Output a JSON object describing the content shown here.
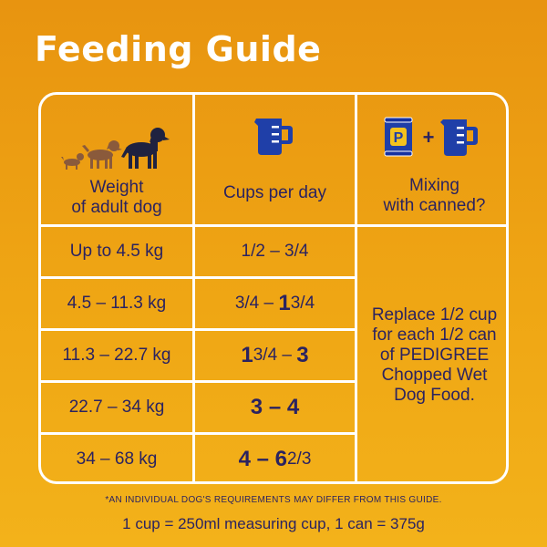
{
  "title": "Feeding Guide",
  "headers": {
    "weight": [
      "Weight",
      "of adult dog"
    ],
    "cups": "Cups per day",
    "mixing": [
      "Mixing",
      "with canned?"
    ]
  },
  "rows": [
    {
      "weight": "Up to 4.5 kg",
      "cups": "1/2 – 3/4"
    },
    {
      "weight": "4.5 – 11.3 kg",
      "cups_a": "3/4 – ",
      "cups_big": "1",
      "cups_b": " 3/4"
    },
    {
      "weight": "11.3 – 22.7 kg",
      "cups_big1": "1",
      "cups_small": " 3/4 – ",
      "cups_big2": "3"
    },
    {
      "weight": "22.7 – 34 kg",
      "cups_big": "3 – 4"
    },
    {
      "weight": "34 – 68 kg",
      "cups_big": "4 – 6",
      "cups_small": " 2/3"
    }
  ],
  "mixing_text": [
    "Replace 1/2 cup",
    "for each 1/2 can",
    "of PEDIGREE",
    "Chopped Wet",
    "Dog Food."
  ],
  "can_letter": "P",
  "plus": "+",
  "footnote": "*AN INDIVIDUAL DOG'S REQUIREMENTS MAY DIFFER FROM THIS GUIDE.",
  "measure_note": "1 cup = 250ml measuring cup, 1 can = 375g",
  "colors": {
    "navy": "#2b2360",
    "blue": "#1f3fa8",
    "brown": "#8a5a3b",
    "dark": "#1f2240"
  }
}
